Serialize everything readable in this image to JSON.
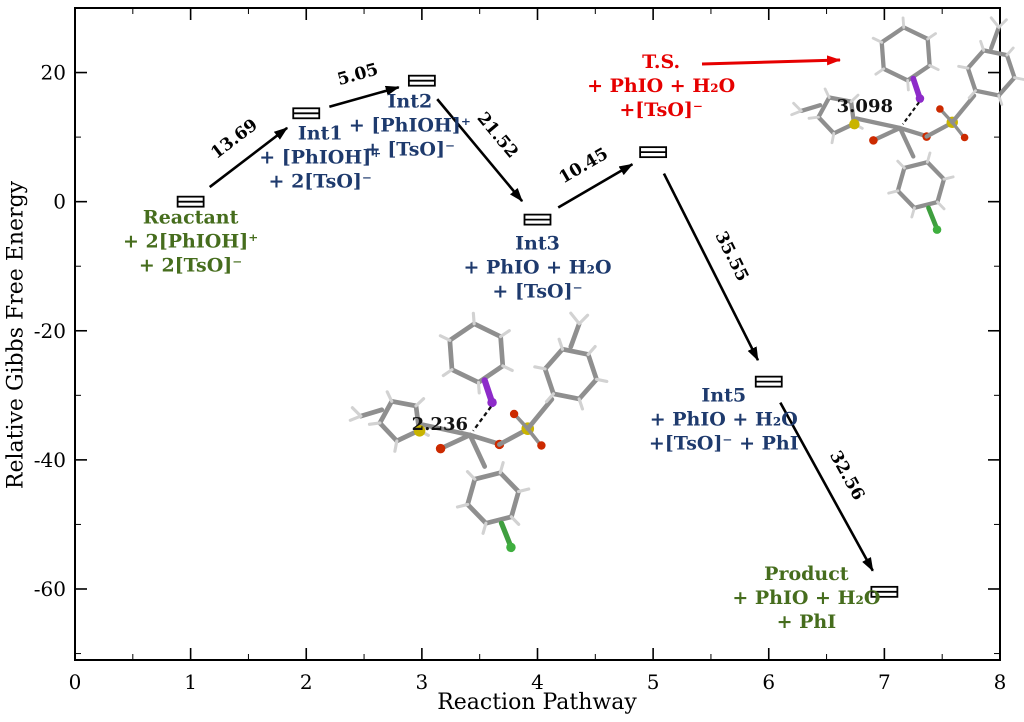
{
  "chart_data": {
    "type": "line",
    "title": "",
    "xlabel": "Reaction Pathway",
    "ylabel": "Relative Gibbs Free Energy",
    "xlim": [
      0,
      8
    ],
    "ylim": [
      -71,
      30
    ],
    "x_major_ticks": [
      0,
      1,
      2,
      3,
      4,
      5,
      6,
      7,
      8
    ],
    "y_major_ticks": [
      -60,
      -40,
      -20,
      0,
      20
    ],
    "grid": false,
    "legend": "none",
    "states": [
      {
        "name": "Reactant",
        "x": 1,
        "energy": 0.0,
        "color": "#466d1d",
        "label_lines": [
          "Reactant",
          "+ 2[PhIOH]⁺",
          "+ 2[TsO]⁻"
        ]
      },
      {
        "name": "Int1",
        "x": 2,
        "energy": 13.69,
        "color": "#1e3a6d",
        "label_lines": [
          "Int1",
          "+ [PhIOH]⁺",
          "+ 2[TsO]⁻"
        ]
      },
      {
        "name": "Int2",
        "x": 3,
        "energy": 18.74,
        "color": "#1e3a6d",
        "label_lines": [
          "Int2",
          "+ [PhIOH]⁺",
          "+ [TsO]⁻"
        ]
      },
      {
        "name": "Int3",
        "x": 4,
        "energy": -2.78,
        "color": "#1e3a6d",
        "label_lines": [
          "Int3",
          "+ PhIO + H₂O",
          "+ [TsO]⁻"
        ]
      },
      {
        "name": "T.S.",
        "x": 5,
        "energy": 7.67,
        "color": "#e60000",
        "label_lines": [
          "T.S.",
          "+ PhIO + H₂O",
          "+[TsO]⁻"
        ]
      },
      {
        "name": "Int5",
        "x": 6,
        "energy": -27.88,
        "color": "#1e3a6d",
        "label_lines": [
          "Int5",
          "+ PhIO + H₂O",
          "+[TsO]⁻ + PhI"
        ]
      },
      {
        "name": "Product",
        "x": 7,
        "energy": -60.44,
        "color": "#466d1d",
        "label_lines": [
          "Product",
          "+ PhIO + H₂O",
          "+ PhI"
        ]
      }
    ],
    "transitions": [
      {
        "from": "Reactant",
        "to": "Int1",
        "value": "13.69"
      },
      {
        "from": "Int1",
        "to": "Int2",
        "value": "5.05"
      },
      {
        "from": "Int2",
        "to": "Int3",
        "value": "21.52"
      },
      {
        "from": "Int3",
        "to": "T.S.",
        "value": "10.45"
      },
      {
        "from": "T.S.",
        "to": "Int5",
        "value": "35.55"
      },
      {
        "from": "Int5",
        "to": "Product",
        "value": "32.56"
      }
    ],
    "annotations": [
      {
        "type": "bond-distance",
        "text": "2.236"
      },
      {
        "type": "bond-distance",
        "text": "3.098"
      }
    ],
    "accent_colors": {
      "arrow": "#000000",
      "ts_pointer_arrow": "#e60000"
    }
  }
}
